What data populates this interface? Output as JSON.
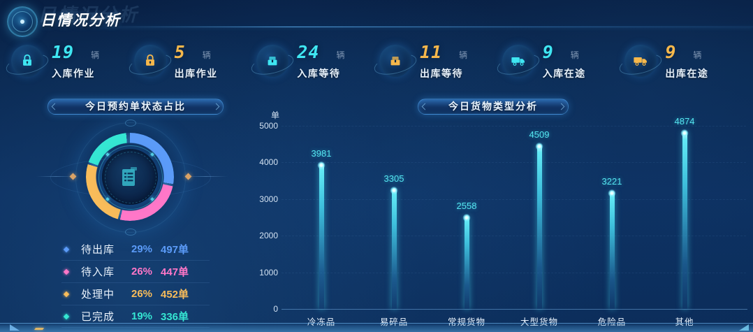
{
  "header": {
    "title": "日情况分析"
  },
  "stats": [
    {
      "value": "19",
      "unit": "辆",
      "label": "入库作业",
      "color": "#3fe6f2",
      "icon": "lock-icon"
    },
    {
      "value": "5",
      "unit": "辆",
      "label": "出库作业",
      "color": "#f7b84b",
      "icon": "lock-icon"
    },
    {
      "value": "24",
      "unit": "辆",
      "label": "入库等待",
      "color": "#3fe6f2",
      "icon": "package-icon"
    },
    {
      "value": "11",
      "unit": "辆",
      "label": "出库等待",
      "color": "#f7b84b",
      "icon": "package-icon"
    },
    {
      "value": "9",
      "unit": "辆",
      "label": "入库在途",
      "color": "#3fe6f2",
      "icon": "truck-icon"
    },
    {
      "value": "9",
      "unit": "辆",
      "label": "出库在途",
      "color": "#f7b84b",
      "icon": "truck-icon"
    }
  ],
  "chart_data": [
    {
      "type": "pie",
      "title": "今日预约单状态占比",
      "unit_suffix": "单",
      "legend_position": "bottom",
      "center_icon": "document-icon",
      "slices": [
        {
          "label": "待出库",
          "percent": 29,
          "count": 497,
          "color": "#5b9bf8"
        },
        {
          "label": "待入库",
          "percent": 26,
          "count": 447,
          "color": "#ff77c8"
        },
        {
          "label": "处理中",
          "percent": 26,
          "count": 452,
          "color": "#f8bc5a"
        },
        {
          "label": "已完成",
          "percent": 19,
          "count": 336,
          "color": "#35e6d3"
        }
      ]
    },
    {
      "type": "bar",
      "title": "今日货物类型分析",
      "ylabel": "单",
      "ylim": [
        0,
        5000
      ],
      "yticks": [
        0,
        1000,
        2000,
        3000,
        4000,
        5000
      ],
      "categories": [
        "冷冻品",
        "易碎品",
        "常规货物",
        "大型货物",
        "危险品",
        "其他"
      ],
      "values": [
        3981,
        3305,
        2558,
        4509,
        3221,
        4874
      ],
      "bar_color": "#49e3ee",
      "grid": false,
      "value_labels": true
    }
  ]
}
